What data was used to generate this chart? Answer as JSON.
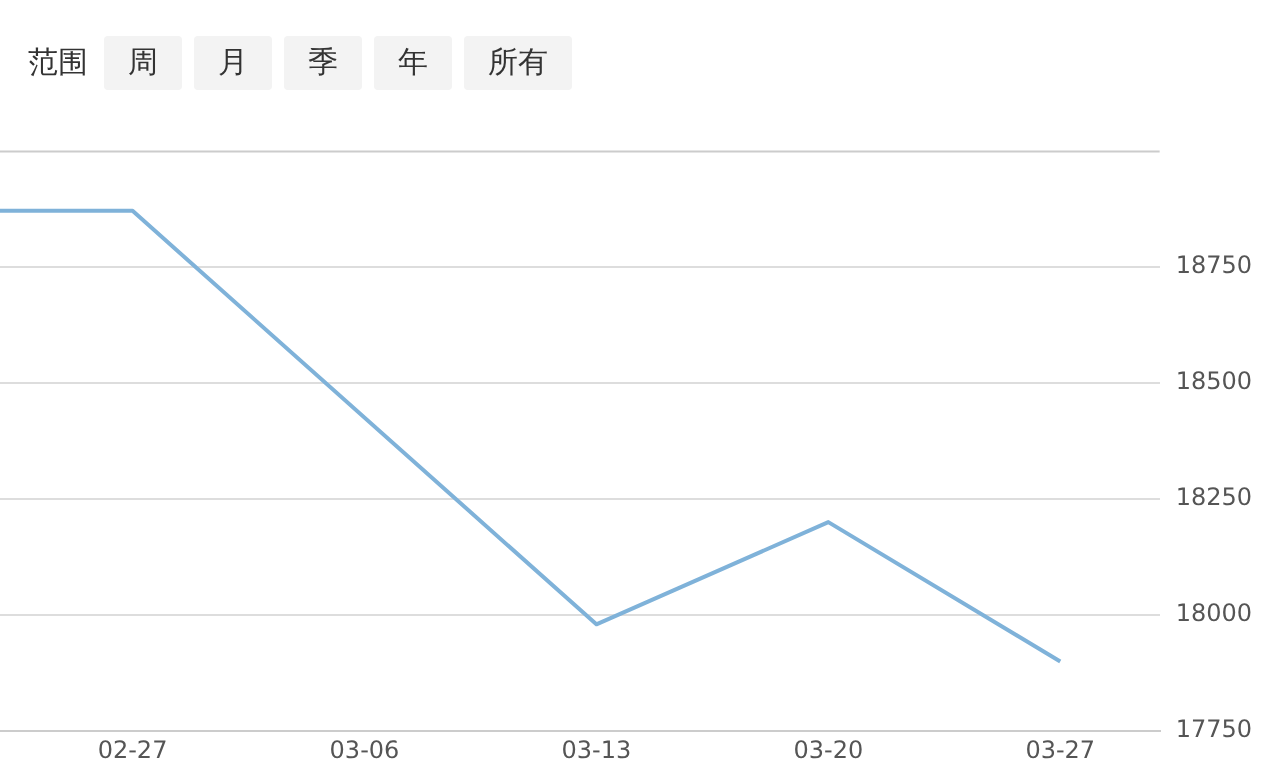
{
  "chart_data": {
    "type": "line",
    "annotations": [
      "范围",
      "周",
      "月",
      "季",
      "年",
      "所有"
    ],
    "x": [
      "--02-23",
      "--02-27",
      "--03-13",
      "--03-20",
      "--03-27"
    ],
    "series": [
      {
        "color": "#7fb2d9",
        "values": [
          18870,
          18870,
          17980,
          18200,
          17900
        ]
      }
    ],
    "xlim": [
      "--02-23",
      "--03-30"
    ],
    "xticks": [
      {
        "value": "--02-27",
        "label": "02-27"
      },
      {
        "value": "--03-06",
        "label": "03-06"
      },
      {
        "value": "--03-13",
        "label": "03-13"
      },
      {
        "value": "--03-20",
        "label": "03-20"
      },
      {
        "value": "--03-27",
        "label": "03-27"
      }
    ],
    "ylim": [
      17750,
      19000
    ],
    "yticks": [
      17750,
      18000,
      18250,
      18500,
      18750
    ],
    "grid": "y",
    "marker": "none",
    "line_style": "solid",
    "legend": false
  }
}
